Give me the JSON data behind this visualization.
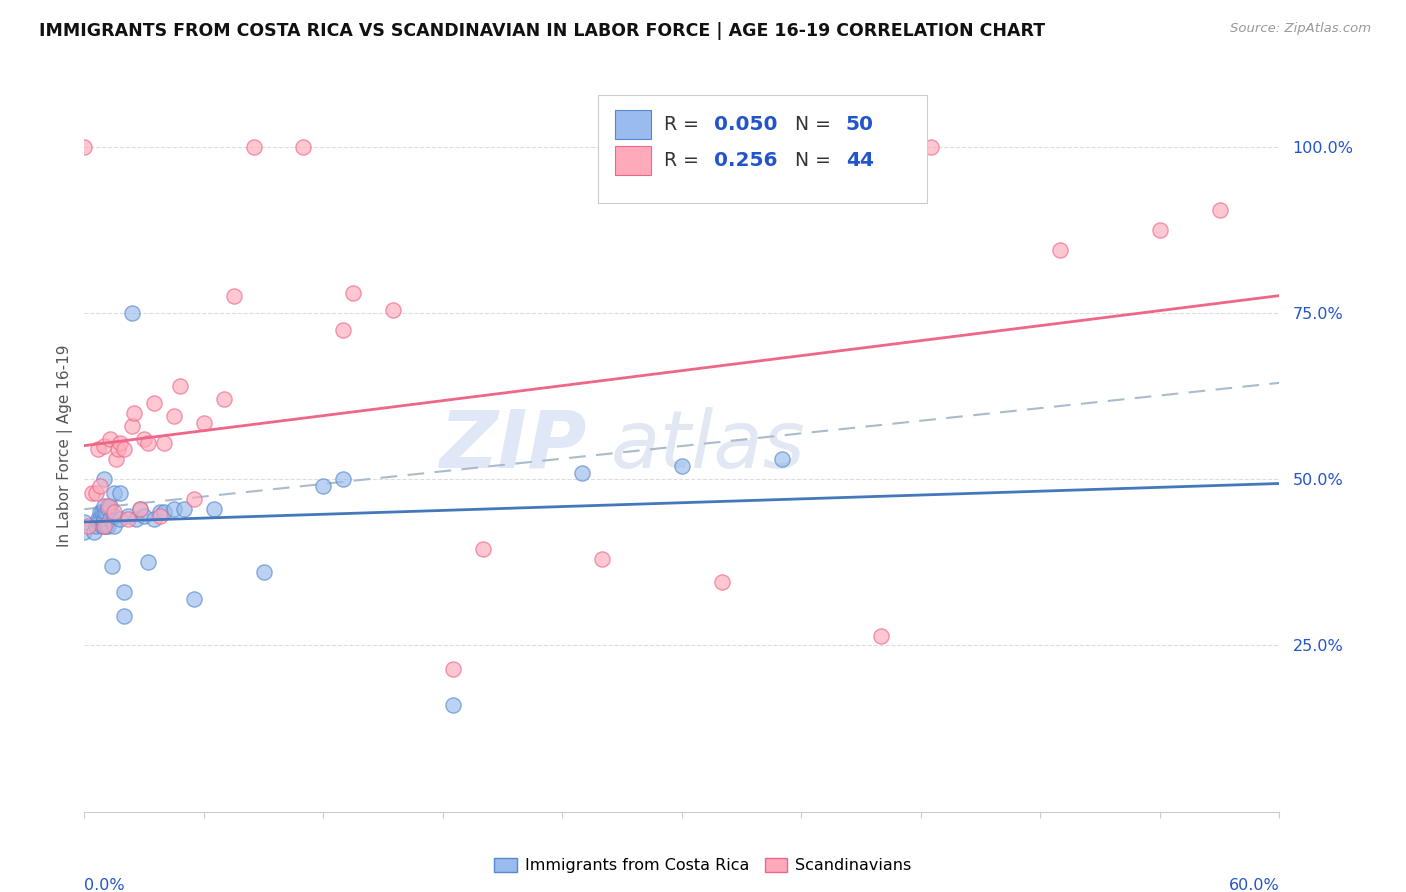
{
  "title": "IMMIGRANTS FROM COSTA RICA VS SCANDINAVIAN IN LABOR FORCE | AGE 16-19 CORRELATION CHART",
  "source": "Source: ZipAtlas.com",
  "ylabel": "In Labor Force | Age 16-19",
  "blue_color": "#99BBEE",
  "blue_edge": "#5588CC",
  "pink_color": "#FFAABB",
  "pink_edge": "#EE6688",
  "blue_line": "#4477BB",
  "pink_line": "#EE6688",
  "dash_line": "#AABBCC",
  "accent_blue": "#2255CC",
  "xmin": 0.0,
  "xmax": 0.6,
  "ymin": 0.0,
  "ymax": 1.1,
  "yticks": [
    0.25,
    0.5,
    0.75,
    1.0
  ],
  "ytick_labels": [
    "25.0%",
    "50.0%",
    "75.0%",
    "100.0%"
  ],
  "costa_rica_x": [
    0.0,
    0.0,
    0.005,
    0.006,
    0.007,
    0.007,
    0.008,
    0.008,
    0.009,
    0.009,
    0.01,
    0.01,
    0.01,
    0.01,
    0.01,
    0.01,
    0.011,
    0.011,
    0.012,
    0.012,
    0.013,
    0.013,
    0.014,
    0.015,
    0.015,
    0.015,
    0.018,
    0.018,
    0.02,
    0.02,
    0.022,
    0.024,
    0.026,
    0.028,
    0.03,
    0.032,
    0.035,
    0.038,
    0.04,
    0.045,
    0.05,
    0.055,
    0.065,
    0.09,
    0.12,
    0.13,
    0.185,
    0.25,
    0.3,
    0.35
  ],
  "costa_rica_y": [
    0.42,
    0.435,
    0.42,
    0.43,
    0.435,
    0.44,
    0.44,
    0.45,
    0.43,
    0.45,
    0.43,
    0.435,
    0.44,
    0.45,
    0.46,
    0.5,
    0.43,
    0.45,
    0.43,
    0.455,
    0.44,
    0.46,
    0.37,
    0.43,
    0.445,
    0.48,
    0.44,
    0.48,
    0.295,
    0.33,
    0.445,
    0.75,
    0.44,
    0.455,
    0.445,
    0.375,
    0.44,
    0.45,
    0.45,
    0.455,
    0.455,
    0.32,
    0.455,
    0.36,
    0.49,
    0.5,
    0.16,
    0.51,
    0.52,
    0.53
  ],
  "scandinavian_x": [
    0.0,
    0.002,
    0.004,
    0.006,
    0.007,
    0.008,
    0.01,
    0.01,
    0.012,
    0.013,
    0.015,
    0.016,
    0.017,
    0.018,
    0.02,
    0.022,
    0.024,
    0.025,
    0.028,
    0.03,
    0.032,
    0.035,
    0.038,
    0.04,
    0.045,
    0.048,
    0.055,
    0.06,
    0.07,
    0.075,
    0.085,
    0.11,
    0.13,
    0.135,
    0.155,
    0.185,
    0.2,
    0.26,
    0.32,
    0.4,
    0.425,
    0.49,
    0.54,
    0.57
  ],
  "scandinavian_y": [
    1.0,
    0.43,
    0.48,
    0.48,
    0.545,
    0.49,
    0.43,
    0.55,
    0.46,
    0.56,
    0.45,
    0.53,
    0.545,
    0.555,
    0.545,
    0.44,
    0.58,
    0.6,
    0.455,
    0.56,
    0.555,
    0.615,
    0.445,
    0.555,
    0.595,
    0.64,
    0.47,
    0.585,
    0.62,
    0.775,
    1.0,
    1.0,
    0.725,
    0.78,
    0.755,
    0.215,
    0.395,
    0.38,
    0.345,
    0.265,
    1.0,
    0.845,
    0.875,
    0.905
  ]
}
